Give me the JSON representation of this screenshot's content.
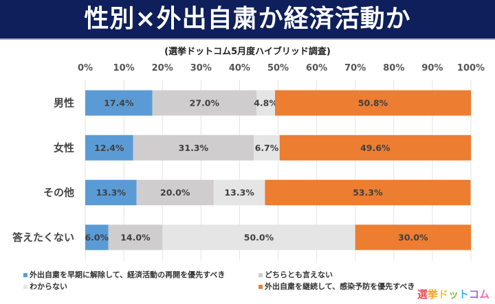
{
  "header": {
    "title": "性別×外出自粛か経済活動か"
  },
  "chart_data": {
    "type": "bar",
    "stacked": true,
    "orientation": "horizontal",
    "subtitle": "(選挙ドットコム5月度ハイブリッド調査)",
    "categories": [
      "男性",
      "女性",
      "その他",
      "答えたくない"
    ],
    "xlim": [
      0,
      100
    ],
    "x_ticks": [
      "0%",
      "10%",
      "20%",
      "30%",
      "40%",
      "50%",
      "60%",
      "70%",
      "80%",
      "90%",
      "100%"
    ],
    "grid": true,
    "legend_position": "bottom",
    "series": [
      {
        "name": "外出自粛を早期に解除して、経済活動の再開を優先すべき",
        "color": "#5b9bd5",
        "values": [
          17.4,
          12.4,
          13.3,
          6.0
        ],
        "labels": [
          "17.4%",
          "12.4%",
          "13.3%",
          "6.0%"
        ]
      },
      {
        "name": "どちらとも言えない",
        "color": "#cfcdcd",
        "values": [
          27.0,
          31.3,
          20.0,
          14.0
        ],
        "labels": [
          "27.0%",
          "31.3%",
          "20.0%",
          "14.0%"
        ]
      },
      {
        "name": "わからない",
        "color": "#e5e5e5",
        "values": [
          4.8,
          6.7,
          13.3,
          50.0
        ],
        "labels": [
          "4.8%",
          "6.7%",
          "13.3%",
          "50.0%"
        ]
      },
      {
        "name": "外出自粛を継続して、感染予防を優先すべき",
        "color": "#ed7d31",
        "values": [
          50.8,
          49.6,
          53.3,
          30.0
        ],
        "labels": [
          "50.8%",
          "49.6%",
          "53.3%",
          "30.0%"
        ]
      }
    ]
  },
  "logo": {
    "parts": [
      "選",
      "挙",
      "ド",
      "ッ",
      "ト",
      "コ",
      "ム"
    ],
    "colors": [
      "#e8505b",
      "#f5a623",
      "#f7c531",
      "#7cc243",
      "#3db3e3",
      "#9b6fd1",
      "#e86fb0"
    ]
  }
}
